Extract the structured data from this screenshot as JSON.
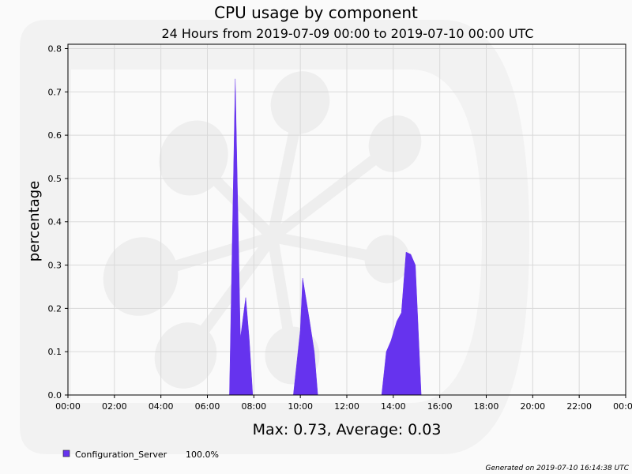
{
  "chart_data": {
    "type": "area",
    "title": "CPU usage by component",
    "subtitle": "24 Hours from 2019-07-09 00:00 to 2019-07-10 00:00 UTC",
    "xlabel": "",
    "ylabel": "percentage",
    "xlim": [
      0,
      24
    ],
    "ylim": [
      0,
      0.81
    ],
    "x_ticks": [
      {
        "value": 0,
        "label": "00:00"
      },
      {
        "value": 2,
        "label": "02:00"
      },
      {
        "value": 4,
        "label": "04:00"
      },
      {
        "value": 6,
        "label": "06:00"
      },
      {
        "value": 8,
        "label": "08:00"
      },
      {
        "value": 10,
        "label": "10:00"
      },
      {
        "value": 12,
        "label": "12:00"
      },
      {
        "value": 14,
        "label": "14:00"
      },
      {
        "value": 16,
        "label": "16:00"
      },
      {
        "value": 18,
        "label": "18:00"
      },
      {
        "value": 20,
        "label": "20:00"
      },
      {
        "value": 22,
        "label": "22:00"
      },
      {
        "value": 24,
        "label": "00:00"
      }
    ],
    "y_ticks": [
      {
        "value": 0.0,
        "label": "0.0"
      },
      {
        "value": 0.1,
        "label": "0.1"
      },
      {
        "value": 0.2,
        "label": "0.2"
      },
      {
        "value": 0.3,
        "label": "0.3"
      },
      {
        "value": 0.4,
        "label": "0.4"
      },
      {
        "value": 0.5,
        "label": "0.5"
      },
      {
        "value": 0.6,
        "label": "0.6"
      },
      {
        "value": 0.7,
        "label": "0.7"
      },
      {
        "value": 0.8,
        "label": "0.8"
      }
    ],
    "grid": true,
    "series": [
      {
        "name": "Configuration_Server",
        "color": "#6633ee",
        "points": [
          [
            0,
            0
          ],
          [
            6.95,
            0
          ],
          [
            7.2,
            0.73
          ],
          [
            7.42,
            0.13
          ],
          [
            7.65,
            0.225
          ],
          [
            7.8,
            0.13
          ],
          [
            7.95,
            0
          ],
          [
            9.7,
            0
          ],
          [
            10.0,
            0.15
          ],
          [
            10.1,
            0.27
          ],
          [
            10.4,
            0.17
          ],
          [
            10.6,
            0.1
          ],
          [
            10.75,
            0
          ],
          [
            13.5,
            0
          ],
          [
            13.7,
            0.1
          ],
          [
            13.9,
            0.125
          ],
          [
            14.15,
            0.17
          ],
          [
            14.35,
            0.19
          ],
          [
            14.55,
            0.33
          ],
          [
            14.75,
            0.325
          ],
          [
            14.95,
            0.3
          ],
          [
            15.2,
            0
          ],
          [
            24,
            0
          ]
        ]
      }
    ],
    "summary": "Max: 0.73, Average: 0.03",
    "legend": [
      {
        "name": "Configuration_Server",
        "color": "#6633ee",
        "share": "100.0%"
      }
    ],
    "legend_position": "bottom-left",
    "footer": "Generated on 2019-07-10 16:14:38 UTC"
  }
}
